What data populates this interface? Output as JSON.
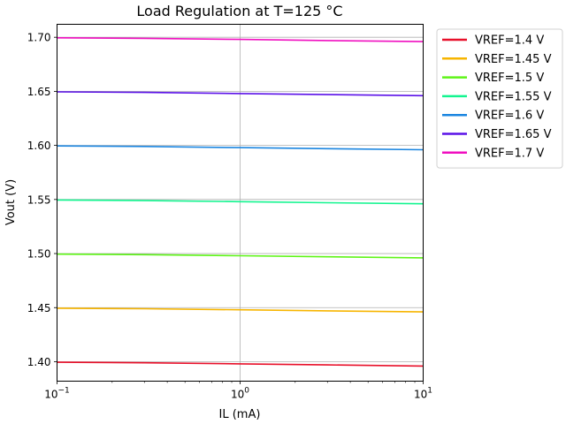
{
  "chart_data": {
    "type": "line",
    "title": "Load Regulation at T=125 °C",
    "xlabel": "IL (mA)",
    "ylabel": "Vout (V)",
    "xscale": "log",
    "xlim": [
      0.1,
      10
    ],
    "ylim": [
      1.382,
      1.712
    ],
    "x_ticks": [
      {
        "value": 0.1,
        "base": "10",
        "exp": "−1"
      },
      {
        "value": 1,
        "base": "10",
        "exp": "0"
      },
      {
        "value": 10,
        "base": "10",
        "exp": "1"
      }
    ],
    "y_ticks": [
      {
        "value": 1.4,
        "label": "1.40"
      },
      {
        "value": 1.45,
        "label": "1.45"
      },
      {
        "value": 1.5,
        "label": "1.50"
      },
      {
        "value": 1.55,
        "label": "1.55"
      },
      {
        "value": 1.6,
        "label": "1.60"
      },
      {
        "value": 1.65,
        "label": "1.65"
      },
      {
        "value": 1.7,
        "label": "1.70"
      }
    ],
    "grid": true,
    "legend_position": "outside-top-right",
    "x": [
      0.1,
      0.3,
      1,
      3,
      10
    ],
    "series": [
      {
        "name": "VREF=1.4 V",
        "color": "#e8102a",
        "values": [
          1.3995,
          1.399,
          1.398,
          1.397,
          1.396
        ]
      },
      {
        "name": "VREF=1.45 V",
        "color": "#f7b500",
        "values": [
          1.4495,
          1.449,
          1.448,
          1.447,
          1.446
        ]
      },
      {
        "name": "VREF=1.5 V",
        "color": "#5ef417",
        "values": [
          1.4995,
          1.499,
          1.498,
          1.497,
          1.496
        ]
      },
      {
        "name": "VREF=1.55 V",
        "color": "#12f58f",
        "values": [
          1.5495,
          1.549,
          1.548,
          1.547,
          1.546
        ]
      },
      {
        "name": "VREF=1.6 V",
        "color": "#1a85e0",
        "values": [
          1.5995,
          1.599,
          1.598,
          1.597,
          1.596
        ]
      },
      {
        "name": "VREF=1.65 V",
        "color": "#5a10e8",
        "values": [
          1.6495,
          1.649,
          1.648,
          1.647,
          1.646
        ]
      },
      {
        "name": "VREF=1.7 V",
        "color": "#f00fc0",
        "values": [
          1.6995,
          1.699,
          1.698,
          1.697,
          1.696
        ]
      }
    ]
  }
}
